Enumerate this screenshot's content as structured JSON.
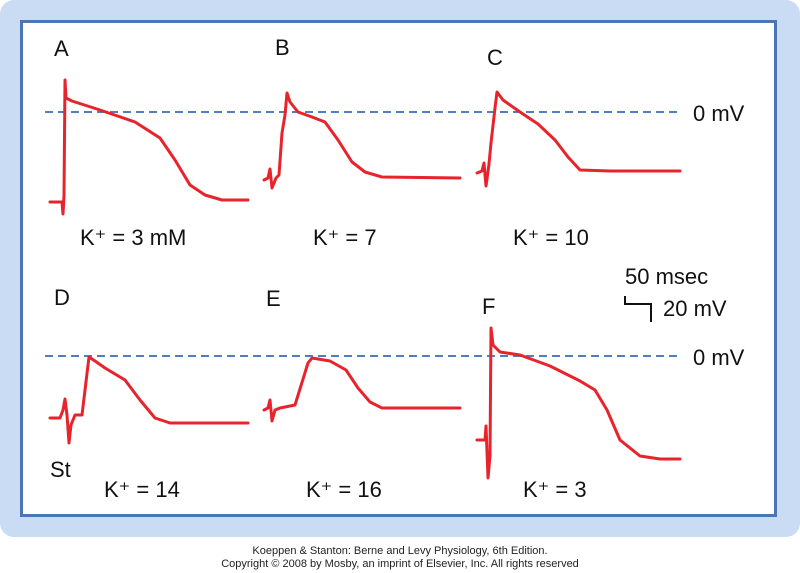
{
  "panels": [
    {
      "letter": "A",
      "condition": "K⁺ = 3 mM"
    },
    {
      "letter": "B",
      "condition": "K⁺ = 7"
    },
    {
      "letter": "C",
      "condition": "K⁺ = 10"
    },
    {
      "letter": "D",
      "condition": "K⁺ = 14"
    },
    {
      "letter": "E",
      "condition": "K⁺ = 16"
    },
    {
      "letter": "F",
      "condition": "K⁺ = 3"
    }
  ],
  "zero_label": "0 mV",
  "stimulus_label": "St",
  "scale_bar": {
    "time": "50 msec",
    "voltage": "20 mV"
  },
  "colors": {
    "trace": "#e8232b",
    "zero_line": "#4f7fc0",
    "frame_border": "#4a76b5",
    "frame_bg": "#c9dcf3"
  },
  "caption": {
    "line1": "Koeppen & Stanton: Berne and Levy Physiology, 6th Edition.",
    "line2": "Copyright © 2008 by Mosby, an imprint of Elsevier, Inc. All rights reserved"
  }
}
